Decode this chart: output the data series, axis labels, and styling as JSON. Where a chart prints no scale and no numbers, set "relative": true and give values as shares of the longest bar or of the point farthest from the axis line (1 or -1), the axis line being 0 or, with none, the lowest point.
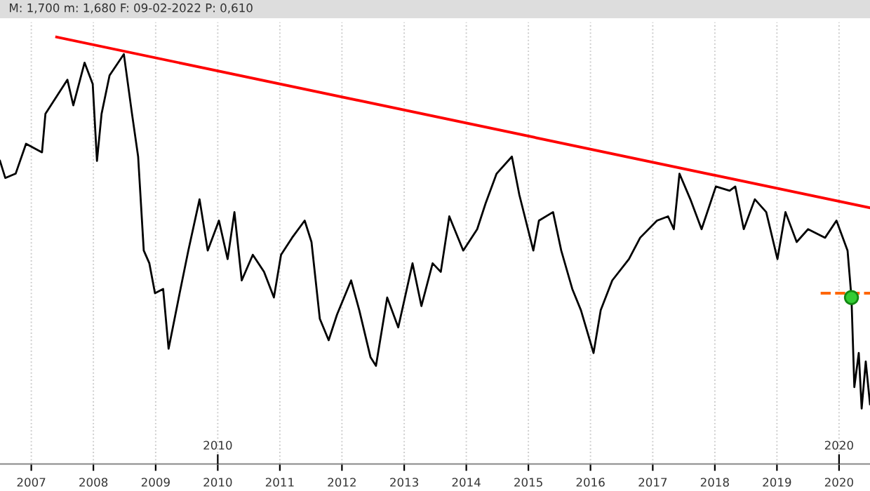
{
  "chart_data": {
    "type": "line",
    "relative": true,
    "subtitle": "M: 1,700 m: 1,680 F: 09-02-2022 P: 0,610",
    "grid": true,
    "legend": false,
    "marker": "none",
    "xlim": [
      "2006-07-01",
      "2020-07-01"
    ],
    "xticks": [
      "2007",
      "2008",
      "2009",
      "2010",
      "2011",
      "2012",
      "2013",
      "2014",
      "2015",
      "2016",
      "2017",
      "2018",
      "2019",
      "2020"
    ],
    "x2lim": [
      "2006-07-01",
      "2020-07-01"
    ],
    "x2ticks": [
      "2010",
      "2020"
    ],
    "series": [
      {
        "color": "#000000",
        "x": [
          "2006-07-01",
          "2006-08-01",
          "2006-10-01",
          "2006-12-01",
          "2007-03-05",
          "2007-03-25",
          "2007-08-01",
          "2007-09-05",
          "2007-11-10",
          "2007-12-28",
          "2008-01-22",
          "2008-02-18",
          "2008-04-05",
          "2008-06-28",
          "2008-08-15",
          "2008-09-20",
          "2008-10-23",
          "2008-11-25",
          "2008-12-28",
          "2009-02-14",
          "2009-03-18",
          "2009-05-22",
          "2009-07-12",
          "2009-09-16",
          "2009-11-03",
          "2010-01-08",
          "2010-02-28",
          "2010-04-09",
          "2010-05-22",
          "2010-07-26",
          "2010-09-30",
          "2010-11-27",
          "2011-01-08",
          "2011-03-14",
          "2011-05-27",
          "2011-07-06",
          "2011-08-24",
          "2011-10-15",
          "2011-12-03",
          "2012-02-24",
          "2012-04-12",
          "2012-06-17",
          "2012-07-19",
          "2012-09-23",
          "2012-11-27",
          "2013-02-19",
          "2013-04-12",
          "2013-06-17",
          "2013-08-04",
          "2013-09-23",
          "2013-12-14",
          "2014-03-06",
          "2014-04-24",
          "2014-06-28",
          "2014-09-26",
          "2014-11-09",
          "2015-01-30",
          "2015-03-04",
          "2015-05-26",
          "2015-07-13",
          "2015-09-16",
          "2015-11-06",
          "2016-01-19",
          "2016-03-01",
          "2016-05-08",
          "2016-08-14",
          "2016-10-19",
          "2017-01-26",
          "2017-04-01",
          "2017-05-05",
          "2017-06-07",
          "2017-08-10",
          "2017-10-15",
          "2018-01-07",
          "2018-03-29",
          "2018-05-01",
          "2018-06-20",
          "2018-08-24",
          "2018-10-30",
          "2019-01-04",
          "2019-02-20",
          "2019-04-27",
          "2019-07-03",
          "2019-10-11",
          "2019-12-17",
          "2020-02-20",
          "2020-03-14",
          "2020-03-31",
          "2020-04-26",
          "2020-05-13",
          "2020-06-06",
          "2020-07-01"
        ],
        "values": [
          0.71,
          0.67,
          0.68,
          0.75,
          0.73,
          0.82,
          0.9,
          0.84,
          0.94,
          0.89,
          0.71,
          0.82,
          0.91,
          0.96,
          0.82,
          0.72,
          0.5,
          0.47,
          0.4,
          0.41,
          0.27,
          0.4,
          0.5,
          0.62,
          0.5,
          0.57,
          0.48,
          0.59,
          0.43,
          0.49,
          0.45,
          0.39,
          0.49,
          0.53,
          0.57,
          0.52,
          0.34,
          0.29,
          0.35,
          0.43,
          0.36,
          0.25,
          0.23,
          0.39,
          0.32,
          0.47,
          0.37,
          0.47,
          0.45,
          0.58,
          0.5,
          0.55,
          0.61,
          0.68,
          0.72,
          0.63,
          0.5,
          0.57,
          0.59,
          0.5,
          0.41,
          0.36,
          0.26,
          0.36,
          0.43,
          0.48,
          0.53,
          0.57,
          0.58,
          0.55,
          0.68,
          0.62,
          0.55,
          0.65,
          0.64,
          0.65,
          0.55,
          0.62,
          0.59,
          0.48,
          0.59,
          0.52,
          0.55,
          0.53,
          0.57,
          0.5,
          0.39,
          0.18,
          0.26,
          0.13,
          0.24,
          0.14
        ]
      },
      {
        "color": "#ff0000",
        "x": [
          "2007-05-30",
          "2020-07-01"
        ],
        "values": [
          1.0,
          0.6
        ]
      },
      {
        "color": "#ff6600",
        "line_style": "dashed",
        "x": [
          "2019-09-15",
          "2020-07-01"
        ],
        "values": [
          0.4,
          0.4
        ]
      },
      {
        "type": "scatter",
        "color": "#33cc33",
        "marker": "circle",
        "x": [
          "2020-03-14"
        ],
        "values": [
          0.39
        ]
      }
    ]
  }
}
